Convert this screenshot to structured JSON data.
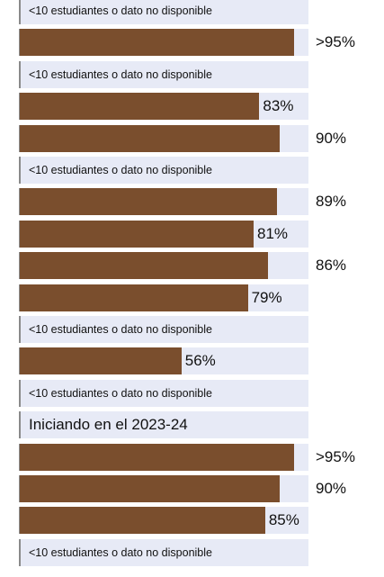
{
  "chart_data": {
    "type": "bar",
    "orientation": "horizontal",
    "xlim": [
      0,
      100
    ],
    "bar_color": "#7a4e2d",
    "track_color": "#e7eaf6",
    "rows": [
      {
        "kind": "na",
        "text": "<10 estudiantes o dato no disponible"
      },
      {
        "kind": "bar",
        "value": 95,
        "label": ">95%"
      },
      {
        "kind": "na",
        "text": "<10 estudiantes o dato no disponible"
      },
      {
        "kind": "bar",
        "value": 83,
        "label": "83%"
      },
      {
        "kind": "bar",
        "value": 90,
        "label": "90%"
      },
      {
        "kind": "na",
        "text": "<10 estudiantes o dato no disponible"
      },
      {
        "kind": "bar",
        "value": 89,
        "label": "89%"
      },
      {
        "kind": "bar",
        "value": 81,
        "label": "81%"
      },
      {
        "kind": "bar",
        "value": 86,
        "label": "86%"
      },
      {
        "kind": "bar",
        "value": 79,
        "label": "79%"
      },
      {
        "kind": "na",
        "text": "<10 estudiantes o dato no disponible"
      },
      {
        "kind": "bar",
        "value": 56,
        "label": "56%"
      },
      {
        "kind": "na",
        "text": "<10 estudiantes o dato no disponible"
      },
      {
        "kind": "heading",
        "text": "Iniciando en el 2023-24"
      },
      {
        "kind": "bar",
        "value": 95,
        "label": ">95%"
      },
      {
        "kind": "bar",
        "value": 90,
        "label": "90%"
      },
      {
        "kind": "bar",
        "value": 85,
        "label": "85%"
      },
      {
        "kind": "na",
        "text": "<10 estudiantes o dato no disponible"
      }
    ]
  }
}
